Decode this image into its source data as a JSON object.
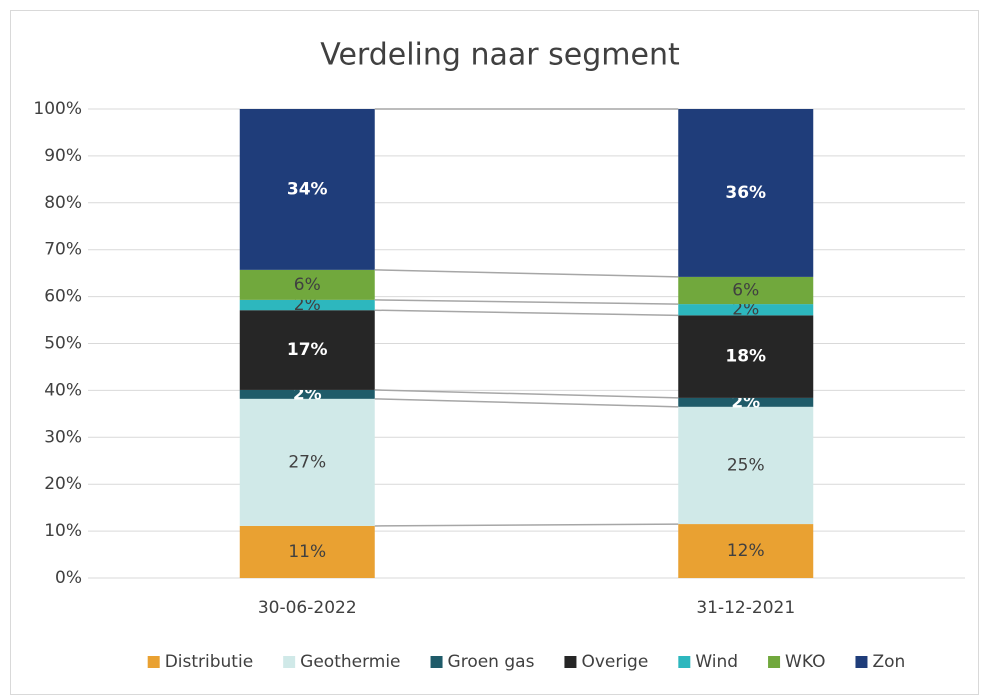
{
  "chart_data": {
    "type": "stacked_bar",
    "title": "Verdeling naar segment",
    "categories": [
      "30-06-2022",
      "31-12-2021"
    ],
    "ylim": [
      0,
      100
    ],
    "yticks": [
      {
        "value": 0,
        "label": "0%"
      },
      {
        "value": 10,
        "label": "10%"
      },
      {
        "value": 20,
        "label": "20%"
      },
      {
        "value": 30,
        "label": "30%"
      },
      {
        "value": 40,
        "label": "40%"
      },
      {
        "value": 50,
        "label": "50%"
      },
      {
        "value": 60,
        "label": "60%"
      },
      {
        "value": 70,
        "label": "70%"
      },
      {
        "value": 80,
        "label": "80%"
      },
      {
        "value": 90,
        "label": "90%"
      },
      {
        "value": 100,
        "label": "100%"
      }
    ],
    "grid": true,
    "legend": "bottom",
    "series": [
      {
        "name": "Distributie",
        "color": "#e9a132",
        "values": [
          11.1,
          11.5
        ],
        "value_labels": [
          "11%",
          "12%"
        ]
      },
      {
        "name": "Geothermie",
        "color": "#d0e9e8",
        "values": [
          27.1,
          25.0
        ],
        "value_labels": [
          "27%",
          "25%"
        ]
      },
      {
        "name": "Groen gas",
        "color": "#1f5b69",
        "values": [
          1.9,
          1.9
        ],
        "value_labels": [
          "2%",
          "2%"
        ]
      },
      {
        "name": "Overige",
        "color": "#262626",
        "values": [
          17.0,
          17.6
        ],
        "value_labels": [
          "17%",
          "18%"
        ]
      },
      {
        "name": "Wind",
        "color": "#2db7be",
        "values": [
          2.2,
          2.4
        ],
        "value_labels": [
          "2%",
          "2%"
        ]
      },
      {
        "name": "WKO",
        "color": "#71a83d",
        "values": [
          6.4,
          5.8
        ],
        "value_labels": [
          "6%",
          "6%"
        ]
      },
      {
        "name": "Zon",
        "color": "#1f3d7a",
        "values": [
          34.3,
          35.8
        ],
        "value_labels": [
          "34%",
          "36%"
        ]
      }
    ]
  }
}
